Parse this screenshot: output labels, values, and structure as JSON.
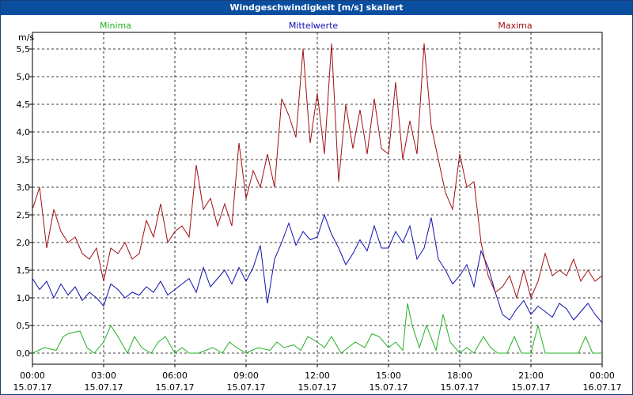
{
  "window": {
    "title": "Windgeschwindigkeit [m/s] skaliert"
  },
  "chart_data": {
    "type": "line",
    "title": "Windgeschwindigkeit [m/s] skaliert",
    "ylabel": "m/s",
    "ylim": [
      -0.2,
      5.8
    ],
    "yticks": [
      "0,0",
      "0,5",
      "1,0",
      "1,5",
      "2,0",
      "2,5",
      "3,0",
      "3,5",
      "4,0",
      "4,5",
      "5,0",
      "5,5"
    ],
    "xlim": [
      0,
      24
    ],
    "xticks": [
      {
        "time": "00:00",
        "date": "15.07.17"
      },
      {
        "time": "03:00",
        "date": "15.07.17"
      },
      {
        "time": "06:00",
        "date": "15.07.17"
      },
      {
        "time": "09:00",
        "date": "15.07.17"
      },
      {
        "time": "12:00",
        "date": "15.07.17"
      },
      {
        "time": "15:00",
        "date": "15.07.17"
      },
      {
        "time": "18:00",
        "date": "15.07.17"
      },
      {
        "time": "21:00",
        "date": "15.07.17"
      },
      {
        "time": "00:00",
        "date": "16.07.17"
      }
    ],
    "grid": true,
    "legend_placement": "top",
    "series": [
      {
        "name": "Minima",
        "color": "#22b022",
        "x": [
          0,
          0.5,
          1,
          1.3,
          1.5,
          2,
          2.3,
          2.6,
          3,
          3.3,
          3.6,
          4,
          4.3,
          4.6,
          5,
          5.3,
          5.6,
          6,
          6.3,
          6.6,
          7,
          7.3,
          7.6,
          8,
          8.3,
          8.6,
          9,
          9.5,
          10,
          10.3,
          10.6,
          11,
          11.3,
          11.6,
          12,
          12.3,
          12.6,
          13,
          13.3,
          13.6,
          14,
          14.3,
          14.6,
          15,
          15.3,
          15.6,
          15.8,
          16,
          16.3,
          16.6,
          17,
          17.3,
          17.6,
          18,
          18.3,
          18.6,
          19,
          19.3,
          19.6,
          20,
          20.3,
          20.6,
          21,
          21.3,
          21.6,
          22,
          22.3,
          22.6,
          23,
          23.3,
          23.6,
          24
        ],
        "values": [
          0,
          0.1,
          0.05,
          0.3,
          0.35,
          0.4,
          0.1,
          0,
          0.2,
          0.5,
          0.3,
          0,
          0.3,
          0.1,
          0,
          0.2,
          0.3,
          0,
          0.1,
          0,
          0,
          0.05,
          0.1,
          0,
          0.2,
          0.1,
          0,
          0.1,
          0.05,
          0.2,
          0.1,
          0.15,
          0.05,
          0.3,
          0.2,
          0.1,
          0.3,
          0,
          0.1,
          0.2,
          0.1,
          0.35,
          0.3,
          0.1,
          0.2,
          0.05,
          0.9,
          0.5,
          0.1,
          0.5,
          0.05,
          0.7,
          0.2,
          0,
          0.1,
          0,
          0.3,
          0.1,
          0,
          0,
          0.3,
          0,
          0,
          0.5,
          0,
          0,
          0,
          0,
          0,
          0.3,
          0,
          0
        ]
      },
      {
        "name": "Mittelwerte",
        "color": "#1010b0",
        "x": [
          0,
          0.3,
          0.6,
          0.9,
          1.2,
          1.5,
          1.8,
          2.1,
          2.4,
          2.7,
          3,
          3.3,
          3.6,
          3.9,
          4.2,
          4.5,
          4.8,
          5.1,
          5.4,
          5.7,
          6,
          6.3,
          6.6,
          6.9,
          7.2,
          7.5,
          7.8,
          8.1,
          8.4,
          8.7,
          9,
          9.3,
          9.6,
          9.9,
          10.2,
          10.5,
          10.8,
          11.1,
          11.4,
          11.7,
          12,
          12.3,
          12.6,
          12.9,
          13.2,
          13.5,
          13.8,
          14.1,
          14.4,
          14.7,
          15,
          15.3,
          15.6,
          15.9,
          16.2,
          16.5,
          16.8,
          17.1,
          17.4,
          17.7,
          18,
          18.3,
          18.6,
          18.9,
          19.2,
          19.5,
          19.8,
          20.1,
          20.4,
          20.7,
          21,
          21.3,
          21.6,
          21.9,
          22.2,
          22.5,
          22.8,
          23.1,
          23.4,
          23.7,
          24
        ],
        "values": [
          1.35,
          1.15,
          1.3,
          1.0,
          1.25,
          1.05,
          1.2,
          0.95,
          1.1,
          1.0,
          0.85,
          1.25,
          1.15,
          1.0,
          1.1,
          1.05,
          1.2,
          1.1,
          1.3,
          1.05,
          1.15,
          1.25,
          1.35,
          1.1,
          1.55,
          1.2,
          1.35,
          1.5,
          1.25,
          1.55,
          1.3,
          1.55,
          1.95,
          0.9,
          1.7,
          2.0,
          2.35,
          1.95,
          2.2,
          2.05,
          2.1,
          2.5,
          2.15,
          1.9,
          1.6,
          1.8,
          2.05,
          1.85,
          2.3,
          1.9,
          1.9,
          2.2,
          2.0,
          2.3,
          1.7,
          1.9,
          2.45,
          1.7,
          1.5,
          1.25,
          1.4,
          1.6,
          1.2,
          1.85,
          1.55,
          1.1,
          0.7,
          0.6,
          0.8,
          0.95,
          0.7,
          0.85,
          0.75,
          0.65,
          0.9,
          0.8,
          0.6,
          0.75,
          0.9,
          0.7,
          0.55
        ]
      },
      {
        "name": "Maxima",
        "color": "#a01010",
        "x": [
          0,
          0.3,
          0.6,
          0.9,
          1.2,
          1.5,
          1.8,
          2.1,
          2.4,
          2.7,
          3,
          3.3,
          3.6,
          3.9,
          4.2,
          4.5,
          4.8,
          5.1,
          5.4,
          5.7,
          6,
          6.3,
          6.6,
          6.9,
          7.2,
          7.5,
          7.8,
          8.1,
          8.4,
          8.7,
          9,
          9.3,
          9.6,
          9.9,
          10.2,
          10.5,
          10.8,
          11.1,
          11.4,
          11.7,
          12,
          12.3,
          12.6,
          12.9,
          13.2,
          13.5,
          13.8,
          14.1,
          14.4,
          14.7,
          15,
          15.3,
          15.6,
          15.9,
          16.2,
          16.5,
          16.8,
          17.1,
          17.4,
          17.7,
          18,
          18.3,
          18.6,
          18.9,
          19.2,
          19.5,
          19.8,
          20.1,
          20.4,
          20.7,
          21,
          21.3,
          21.6,
          21.9,
          22.2,
          22.5,
          22.8,
          23.1,
          23.4,
          23.7,
          24
        ],
        "values": [
          2.6,
          3.0,
          1.9,
          2.6,
          2.2,
          2.0,
          2.1,
          1.8,
          1.7,
          1.9,
          1.3,
          1.9,
          1.8,
          2.0,
          1.7,
          1.8,
          2.4,
          2.1,
          2.7,
          2.0,
          2.2,
          2.3,
          2.1,
          3.4,
          2.6,
          2.8,
          2.3,
          2.7,
          2.3,
          3.8,
          2.8,
          3.3,
          3.0,
          3.6,
          3.0,
          4.6,
          4.3,
          3.9,
          5.5,
          3.8,
          4.7,
          3.6,
          5.6,
          3.1,
          4.5,
          3.7,
          4.4,
          3.6,
          4.6,
          3.7,
          3.6,
          4.9,
          3.5,
          4.2,
          3.6,
          5.6,
          4.1,
          3.5,
          2.9,
          2.6,
          3.6,
          3.0,
          3.1,
          2.0,
          1.4,
          1.1,
          1.2,
          1.4,
          1.0,
          1.5,
          1.0,
          1.3,
          1.8,
          1.4,
          1.5,
          1.4,
          1.7,
          1.3,
          1.5,
          1.3,
          1.4
        ]
      }
    ]
  }
}
